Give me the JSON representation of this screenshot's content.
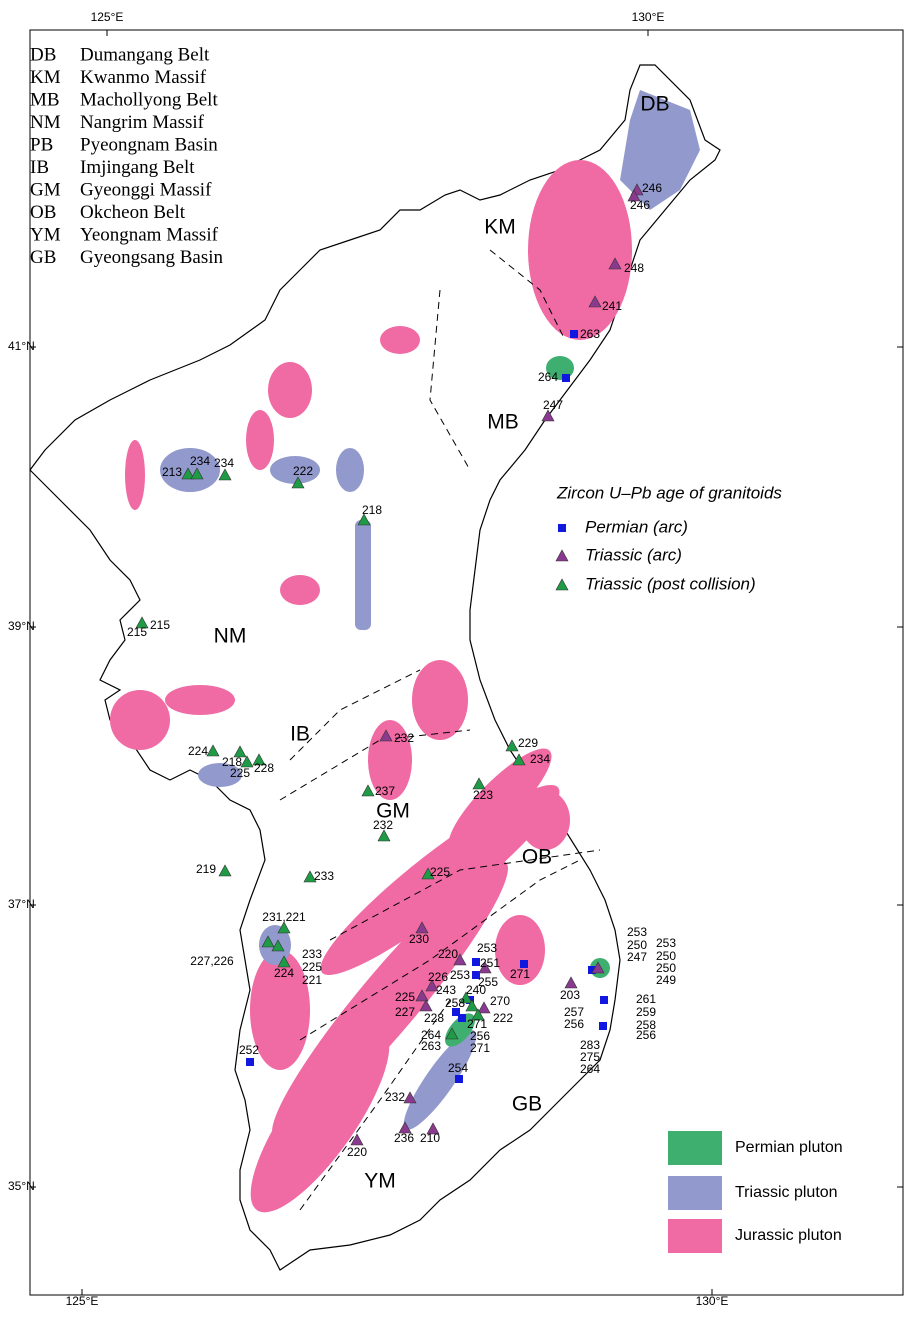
{
  "coordinates": {
    "top": [
      "125°E",
      "130°E"
    ],
    "bottom": [
      "125°E",
      "130°E"
    ],
    "left": [
      "41°N",
      "39°N",
      "37°N",
      "35°N"
    ]
  },
  "abbreviations": [
    {
      "code": "DB",
      "name": "Dumangang Belt"
    },
    {
      "code": "KM",
      "name": "Kwanmo Massif"
    },
    {
      "code": "MB",
      "name": "Machollyong Belt"
    },
    {
      "code": "NM",
      "name": "Nangrim Massif"
    },
    {
      "code": "PB",
      "name": "Pyeongnam Basin"
    },
    {
      "code": "IB",
      "name": "Imjingang Belt"
    },
    {
      "code": "GM",
      "name": "Gyeonggi Massif"
    },
    {
      "code": "OB",
      "name": "Okcheon Belt"
    },
    {
      "code": "YM",
      "name": "Yeongnam Massif"
    },
    {
      "code": "GB",
      "name": "Gyeongsang Basin"
    }
  ],
  "regions": [
    "DB",
    "KM",
    "MB",
    "NM",
    "IB",
    "GM",
    "OB",
    "GB",
    "YM"
  ],
  "legend": {
    "title": "Zircon U–Pb age of granitoids",
    "symbols": [
      "Permian (arc)",
      "Triassic (arc)",
      "Triassic (post collision)"
    ],
    "plutons": [
      "Permian pluton",
      "Triassic pluton",
      "Jurassic pluton"
    ]
  },
  "samples": [
    246,
    246,
    248,
    241,
    263,
    264,
    247,
    213,
    234,
    234,
    222,
    218,
    215,
    215,
    232,
    224,
    218,
    225,
    228,
    229,
    234,
    223,
    237,
    232,
    219,
    233,
    225,
    "231,221",
    230,
    233,
    225,
    221,
    "227,226",
    224,
    220,
    253,
    251,
    253,
    255,
    226,
    243,
    240,
    270,
    225,
    258,
    227,
    228,
    222,
    271,
    264,
    256,
    263,
    271,
    271,
    203,
    253,
    250,
    247,
    253,
    250,
    250,
    249,
    261,
    259,
    258,
    256,
    257,
    256,
    283,
    275,
    264,
    252,
    254,
    232,
    236,
    210,
    220
  ]
}
